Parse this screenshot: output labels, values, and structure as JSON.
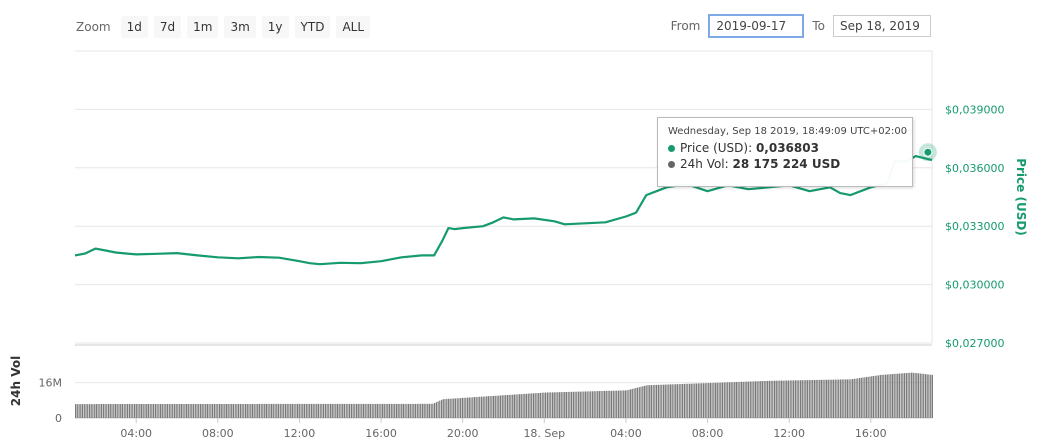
{
  "toolbar": {
    "zoom_label": "Zoom",
    "buttons": [
      "1d",
      "7d",
      "1m",
      "3m",
      "1y",
      "YTD",
      "ALL"
    ]
  },
  "range": {
    "from_label": "From",
    "from_value": "2019-09-17",
    "to_label": "To",
    "to_value": "Sep 18, 2019"
  },
  "tooltip": {
    "header": "Wednesday, Sep 18 2019, 18:49:09 UTC+02:00",
    "price_label": "Price (USD): ",
    "price_value": "0,036803",
    "vol_label": "24h Vol: ",
    "vol_value": "28 175 224 USD"
  },
  "colors": {
    "price_line": "#169a6f",
    "volume_bar": "#7a7a7a",
    "axis_text": "#169a6f"
  },
  "chart_data": {
    "type": "line",
    "price_axis": {
      "label": "Price (USD)",
      "ticks": [
        0.027,
        0.03,
        0.033,
        0.036,
        0.039
      ],
      "tick_labels": [
        "$0,027000",
        "$0,030000",
        "$0,033000",
        "$0,036000",
        "$0,039000"
      ],
      "range": [
        0.027,
        0.042
      ]
    },
    "volume_axis": {
      "label": "24h Vol",
      "tick_labels": [
        "16M",
        "0"
      ],
      "ticks": [
        16,
        0
      ],
      "range": [
        0,
        33
      ]
    },
    "x_axis": {
      "tick_labels": [
        "04:00",
        "08:00",
        "12:00",
        "16:00",
        "20:00",
        "18. Sep",
        "04:00",
        "08:00",
        "12:00",
        "16:00"
      ],
      "tick_hours": [
        4,
        8,
        12,
        16,
        20,
        24,
        28,
        32,
        36,
        40
      ],
      "range_hours": [
        1,
        43
      ]
    },
    "price": [
      [
        1.0,
        0.0315
      ],
      [
        1.5,
        0.0316
      ],
      [
        2.0,
        0.03185
      ],
      [
        2.5,
        0.03175
      ],
      [
        3.0,
        0.03165
      ],
      [
        3.5,
        0.0316
      ],
      [
        4.0,
        0.03155
      ],
      [
        5.0,
        0.03158
      ],
      [
        6.0,
        0.03162
      ],
      [
        7.0,
        0.0315
      ],
      [
        8.0,
        0.0314
      ],
      [
        9.0,
        0.03135
      ],
      [
        10.0,
        0.03142
      ],
      [
        11.0,
        0.03138
      ],
      [
        12.0,
        0.0312
      ],
      [
        12.5,
        0.0311
      ],
      [
        13.0,
        0.03105
      ],
      [
        14.0,
        0.03112
      ],
      [
        15.0,
        0.0311
      ],
      [
        16.0,
        0.0312
      ],
      [
        17.0,
        0.0314
      ],
      [
        18.0,
        0.0315
      ],
      [
        18.6,
        0.0315
      ],
      [
        19.0,
        0.03225
      ],
      [
        19.3,
        0.0329
      ],
      [
        19.6,
        0.03285
      ],
      [
        20.0,
        0.0329
      ],
      [
        21.0,
        0.033
      ],
      [
        21.5,
        0.0332
      ],
      [
        22.0,
        0.03345
      ],
      [
        22.5,
        0.03335
      ],
      [
        23.5,
        0.0334
      ],
      [
        24.5,
        0.03325
      ],
      [
        25.0,
        0.0331
      ],
      [
        26.0,
        0.03315
      ],
      [
        27.0,
        0.0332
      ],
      [
        28.0,
        0.0335
      ],
      [
        28.5,
        0.0337
      ],
      [
        29.0,
        0.0346
      ],
      [
        29.5,
        0.0348
      ],
      [
        30.0,
        0.035
      ],
      [
        31.0,
        0.03515
      ],
      [
        32.0,
        0.0348
      ],
      [
        33.0,
        0.0351
      ],
      [
        34.0,
        0.0349
      ],
      [
        35.0,
        0.035
      ],
      [
        36.0,
        0.0351
      ],
      [
        37.0,
        0.0348
      ],
      [
        38.0,
        0.035
      ],
      [
        38.5,
        0.0347
      ],
      [
        39.0,
        0.0346
      ],
      [
        39.5,
        0.0348
      ],
      [
        40.0,
        0.035
      ],
      [
        40.8,
        0.0352
      ],
      [
        41.2,
        0.0364
      ],
      [
        41.7,
        0.0363
      ],
      [
        42.2,
        0.0366
      ],
      [
        42.6,
        0.0365
      ],
      [
        43.0,
        0.0364
      ]
    ],
    "volume": [
      [
        1.0,
        6.3
      ],
      [
        18.5,
        6.4
      ],
      [
        19.0,
        8.5
      ],
      [
        24.0,
        11.5
      ],
      [
        28.0,
        12.5
      ],
      [
        29.0,
        14.8
      ],
      [
        35.0,
        16.8
      ],
      [
        39.0,
        17.5
      ],
      [
        40.5,
        19.5
      ],
      [
        42.0,
        20.5
      ],
      [
        43.0,
        19.5
      ]
    ],
    "tooltip_point": [
      42.8,
      0.036803
    ]
  }
}
